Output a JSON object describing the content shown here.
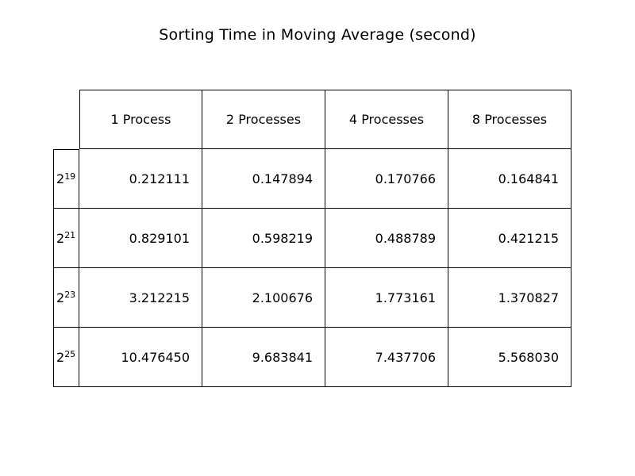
{
  "chart_data": {
    "type": "table",
    "title": "Sorting Time in Moving Average (second)",
    "columns": [
      "1 Process",
      "2 Processes",
      "4 Processes",
      "8 Processes"
    ],
    "rows": [
      {
        "base": "2",
        "exp": "19",
        "values": [
          "0.212111",
          "0.147894",
          "0.170766",
          "0.164841"
        ]
      },
      {
        "base": "2",
        "exp": "21",
        "values": [
          "0.829101",
          "0.598219",
          "0.488789",
          "0.421215"
        ]
      },
      {
        "base": "2",
        "exp": "23",
        "values": [
          "3.212215",
          "2.100676",
          "1.773161",
          "1.370827"
        ]
      },
      {
        "base": "2",
        "exp": "25",
        "values": [
          "10.476450",
          "9.683841",
          "7.437706",
          "5.568030"
        ]
      }
    ]
  }
}
